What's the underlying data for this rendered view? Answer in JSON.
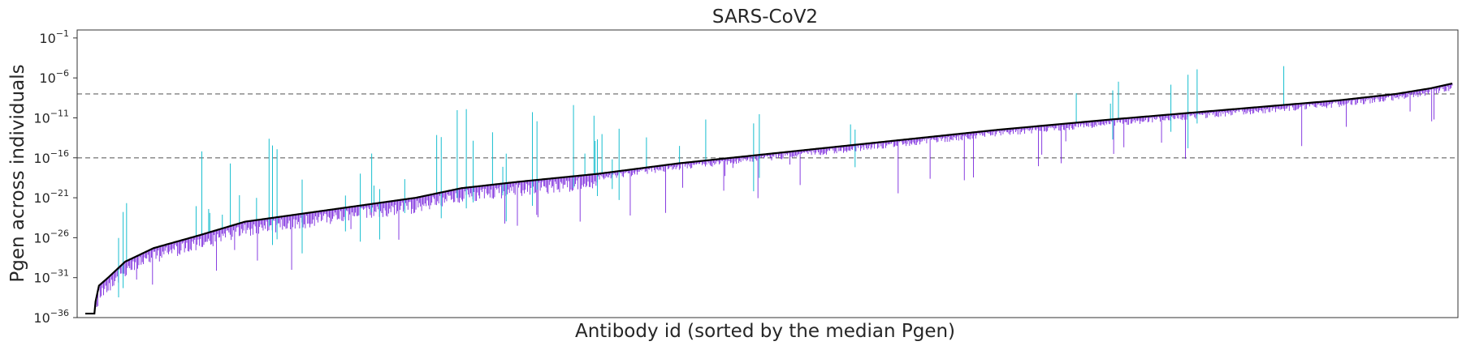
{
  "chart_data": {
    "type": "line",
    "title": "SARS-CoV2",
    "xlabel": "Antibody id (sorted by the median Pgen)",
    "ylabel": "Pgen across individuals",
    "y_scale": "log10",
    "ylim_exponent": [
      -36,
      0
    ],
    "yticks": [
      {
        "base": "10",
        "exp": "−1",
        "value": -1
      },
      {
        "base": "10",
        "exp": "−6",
        "value": -6
      },
      {
        "base": "10",
        "exp": "−11",
        "value": -11
      },
      {
        "base": "10",
        "exp": "−16",
        "value": -16
      },
      {
        "base": "10",
        "exp": "−21",
        "value": -21
      },
      {
        "base": "10",
        "exp": "−26",
        "value": -26
      },
      {
        "base": "10",
        "exp": "−31",
        "value": -31
      },
      {
        "base": "10",
        "exp": "−36",
        "value": -36
      }
    ],
    "x_ticks_shown": false,
    "grid": false,
    "reference_lines_log10": [
      -8,
      -16
    ],
    "n_antibodies": 1200,
    "median_curve_anchors_log10": [
      [
        0,
        -35.5
      ],
      [
        8,
        -35.5
      ],
      [
        9,
        -34
      ],
      [
        12,
        -32
      ],
      [
        20,
        -31
      ],
      [
        35,
        -29
      ],
      [
        60,
        -27.3
      ],
      [
        100,
        -25.7
      ],
      [
        140,
        -24
      ],
      [
        180,
        -23.2
      ],
      [
        240,
        -22
      ],
      [
        290,
        -21
      ],
      [
        330,
        -19.8
      ],
      [
        380,
        -19
      ],
      [
        450,
        -18
      ],
      [
        520,
        -16.7
      ],
      [
        600,
        -15.5
      ],
      [
        700,
        -14
      ],
      [
        800,
        -12.5
      ],
      [
        900,
        -11.2
      ],
      [
        1000,
        -10
      ],
      [
        1100,
        -8.8
      ],
      [
        1150,
        -8
      ],
      [
        1180,
        -7.3
      ],
      [
        1199,
        -6.7
      ]
    ],
    "colors": {
      "median": "#000000",
      "spread_low": "#6a0dd9",
      "spread_high": "#17becf",
      "reference_line": "#808080"
    }
  }
}
